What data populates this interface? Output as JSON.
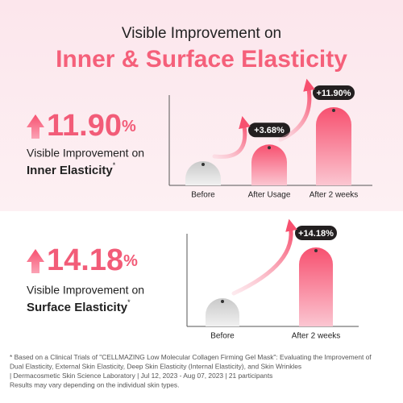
{
  "title_line1": "Visible Improvement on",
  "title_line2": "Inner & Surface Elasticity",
  "chart_data": [
    {
      "type": "bar",
      "stat": "11.90",
      "stat_unit": "%",
      "caption_line1": "Visible Improvement on",
      "caption_line2": "Inner Elasticity",
      "caption_mark": "*",
      "categories": [
        "Before",
        "After Usage",
        "After 2 weeks"
      ],
      "values": [
        0,
        3.68,
        11.9
      ],
      "value_labels": [
        null,
        "+3.68%",
        "+11.90%"
      ],
      "color": "#f7506f",
      "baseline_color": "#c9c9c9"
    },
    {
      "type": "bar",
      "stat": "14.18",
      "stat_unit": "%",
      "caption_line1": "Visible Improvement on",
      "caption_line2": "Surface Elasticity",
      "caption_mark": "*",
      "categories": [
        "Before",
        "After 2 weeks"
      ],
      "values": [
        0,
        14.18
      ],
      "value_labels": [
        null,
        "+14.18%"
      ],
      "color": "#f7506f",
      "baseline_color": "#c9c9c9"
    }
  ],
  "footnote": [
    "* Based on a Clinical Trials of \"CELLMAZING Low Molecular Collagen Firming Gel Mask\": Evaluating the Improvement of",
    "Dual Elasticity, External Skin Elasticity, Deep Skin Elasticity (Internal Elasticity), and Skin Wrinkles",
    "| Dermacosmetic Skin Science Laboratory | Jul 12, 2023 - Aug 07, 2023 | 21 participants",
    "Results may vary depending on the individual skin types."
  ]
}
